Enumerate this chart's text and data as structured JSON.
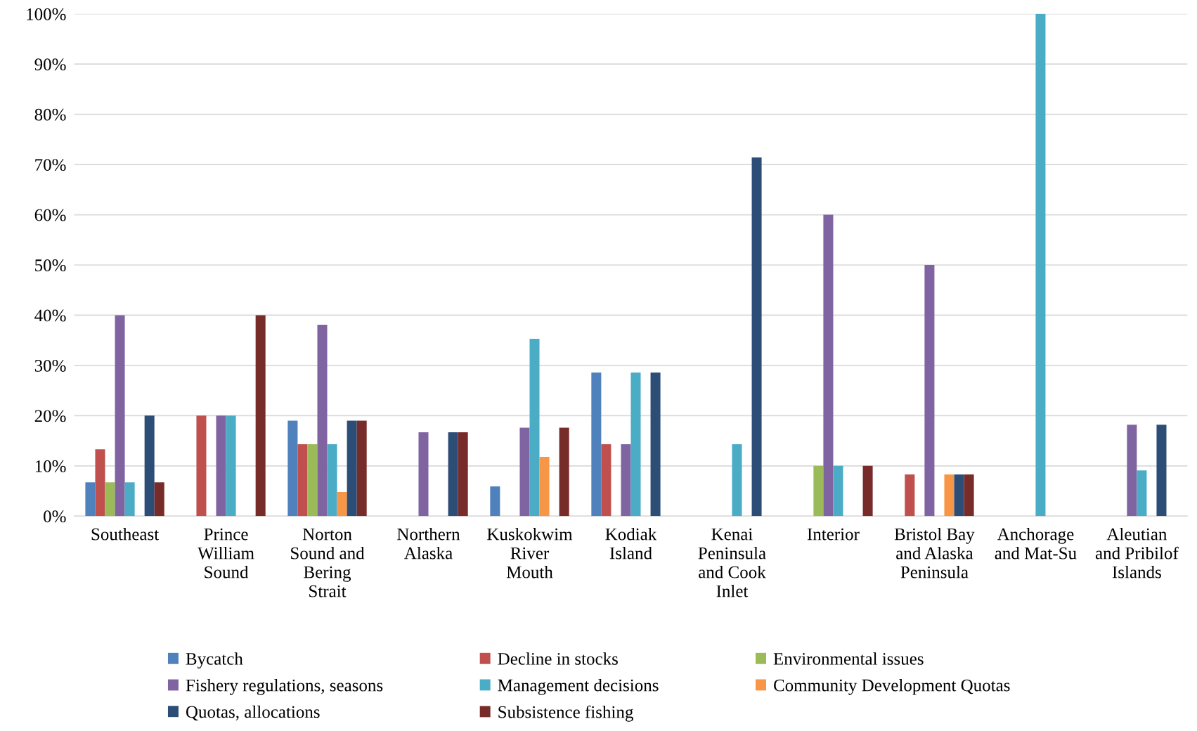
{
  "chart_data": {
    "type": "bar",
    "categories": [
      "Southeast",
      "Prince\nWilliam\nSound",
      "Norton\nSound and\nBering\nStrait",
      "Northern\nAlaska",
      "Kuskokwim\nRiver\nMouth",
      "Kodiak\nIsland",
      "Kenai\nPeninsula\nand Cook\nInlet",
      "Interior",
      "Bristol Bay\nand Alaska\nPeninsula",
      "Anchorage\nand Mat-Su",
      "Aleutian\nand Pribilof\nIslands"
    ],
    "series": [
      {
        "name": "Bycatch",
        "color": "#4f81bd",
        "values": [
          6.7,
          0,
          19.0,
          0,
          5.9,
          28.6,
          0,
          0,
          0,
          0,
          0
        ]
      },
      {
        "name": "Decline in stocks",
        "color": "#c0504d",
        "values": [
          13.3,
          20,
          14.3,
          0,
          0,
          14.3,
          0,
          0,
          8.3,
          0,
          0
        ]
      },
      {
        "name": "Environmental issues",
        "color": "#9bbb59",
        "values": [
          6.7,
          0,
          14.3,
          0,
          0,
          0,
          0,
          10,
          0,
          0,
          0
        ]
      },
      {
        "name": "Fishery regulations, seasons",
        "color": "#8064a2",
        "values": [
          40,
          20,
          38.1,
          16.7,
          17.6,
          14.3,
          0,
          60,
          50,
          0,
          18.2
        ]
      },
      {
        "name": "Management decisions",
        "color": "#4bacc6",
        "values": [
          6.7,
          20,
          14.3,
          0,
          35.3,
          28.6,
          14.3,
          10,
          0,
          100,
          9.1
        ]
      },
      {
        "name": "Community Development Quotas",
        "color": "#f79646",
        "values": [
          0,
          0,
          4.8,
          0,
          11.8,
          0,
          0,
          0,
          8.3,
          0,
          0
        ]
      },
      {
        "name": "Quotas, allocations",
        "color": "#2c4d75",
        "values": [
          20,
          0,
          19.0,
          16.7,
          0,
          28.6,
          71.4,
          0,
          8.3,
          0,
          18.2
        ]
      },
      {
        "name": "Subsistence fishing",
        "color": "#772c2a",
        "values": [
          6.7,
          40,
          19.0,
          16.7,
          17.6,
          0,
          0,
          10,
          8.3,
          0,
          0
        ]
      }
    ],
    "ylim": [
      0,
      100
    ],
    "yticks": [
      {
        "value": 0,
        "label": "0%"
      },
      {
        "value": 10,
        "label": "10%"
      },
      {
        "value": 20,
        "label": "20%"
      },
      {
        "value": 30,
        "label": "30%"
      },
      {
        "value": 40,
        "label": "40%"
      },
      {
        "value": 50,
        "label": "50%"
      },
      {
        "value": 60,
        "label": "60%"
      },
      {
        "value": 70,
        "label": "70%"
      },
      {
        "value": 80,
        "label": "80%"
      },
      {
        "value": 90,
        "label": "90%"
      },
      {
        "value": 100,
        "label": "100%"
      }
    ],
    "grid": "y",
    "legend": "bottom"
  }
}
